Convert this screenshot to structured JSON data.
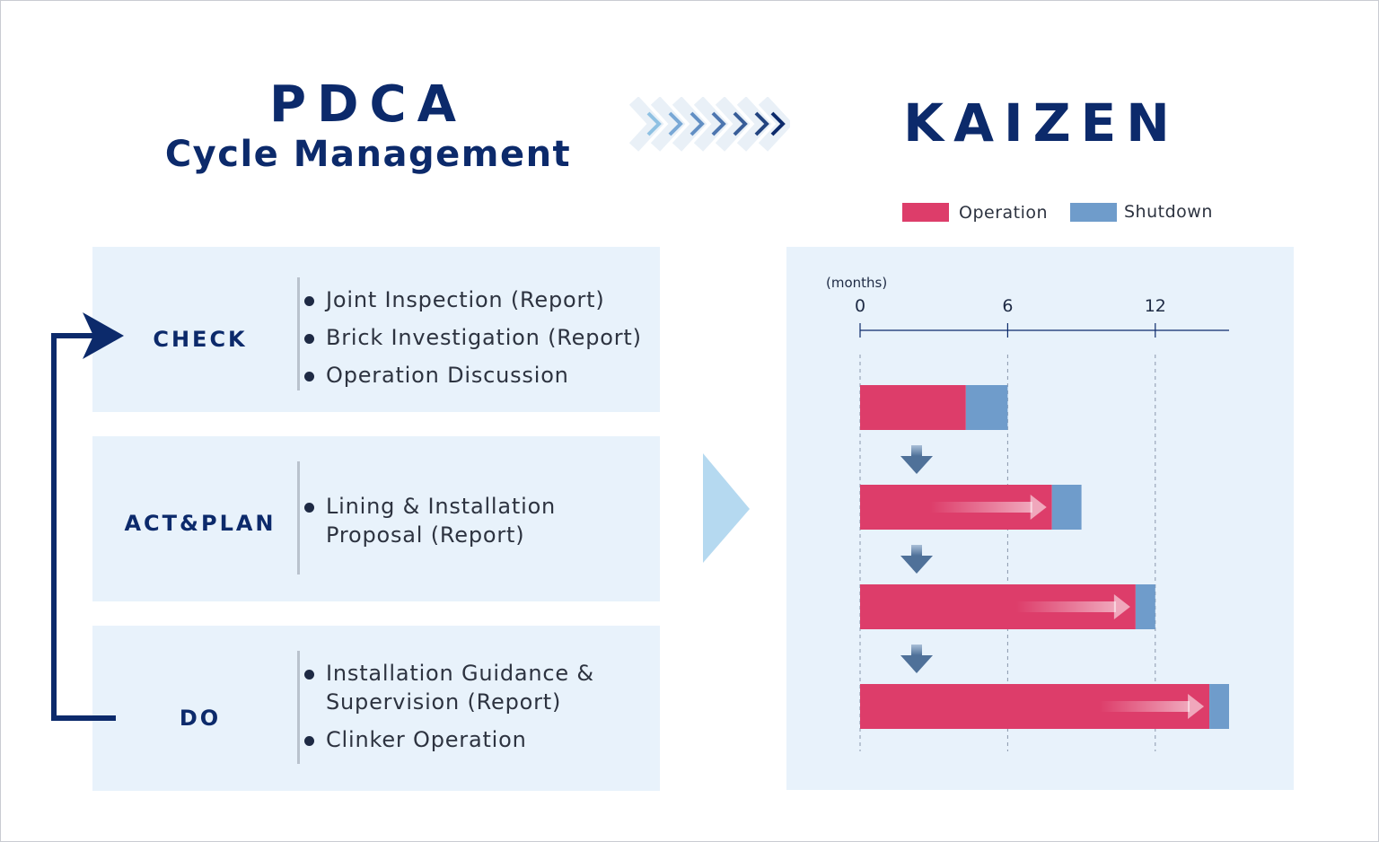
{
  "header": {
    "title_line1": "PDCA",
    "title_line2": "Cycle Management",
    "result_title": "KAIZEN"
  },
  "steps": [
    {
      "label": "CHECK",
      "items": [
        "Joint Inspection (Report)",
        "Brick Investigation (Report)",
        "Operation Discussion"
      ]
    },
    {
      "label": "ACT&PLAN",
      "items": [
        "Lining & Installation",
        "Proposal (Report)"
      ]
    },
    {
      "label": "DO",
      "items": [
        "Installation Guidance &",
        "Supervision (Report)",
        "Clinker Operation"
      ]
    }
  ],
  "colors": {
    "navy": "#0c2a6b",
    "operation": "#dd3d6a",
    "shutdown": "#6f9ccb",
    "panel_bg": "#e8f2fb",
    "arrow_light": "#b5d9f0"
  },
  "chart_data": {
    "type": "bar",
    "orientation": "horizontal",
    "stacked": true,
    "xlabel": "(months)",
    "xlim": [
      0,
      15
    ],
    "x_ticks": [
      "0",
      "6",
      "12"
    ],
    "x_tick_values": [
      0,
      6,
      12
    ],
    "categories": [
      "",
      "",
      "",
      ""
    ],
    "series": [
      {
        "name": "Operation",
        "color": "#dd3d6a",
        "values": [
          4.3,
          7.8,
          11.2,
          14.2
        ]
      },
      {
        "name": "Shutdown",
        "color": "#6f9ccb",
        "values": [
          1.7,
          1.2,
          0.8,
          0.8
        ]
      }
    ],
    "legend": "top-right",
    "grid": "dashed vertical at ticks"
  }
}
